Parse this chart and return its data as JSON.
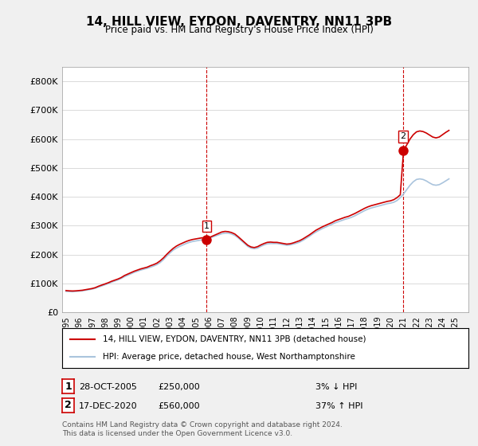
{
  "title": "14, HILL VIEW, EYDON, DAVENTRY, NN11 3PB",
  "subtitle": "Price paid vs. HM Land Registry's House Price Index (HPI)",
  "background_color": "#f0f0f0",
  "plot_bg_color": "#ffffff",
  "ylim": [
    0,
    850000
  ],
  "yticks": [
    0,
    100000,
    200000,
    300000,
    400000,
    500000,
    600000,
    700000,
    800000
  ],
  "ytick_labels": [
    "£0",
    "£100K",
    "£200K",
    "£300K",
    "£400K",
    "£500K",
    "£600K",
    "£700K",
    "£800K"
  ],
  "xlim_start": 1995,
  "xlim_end": 2026,
  "xtick_years": [
    1995,
    1996,
    1997,
    1998,
    1999,
    2000,
    2001,
    2002,
    2003,
    2004,
    2005,
    2006,
    2007,
    2008,
    2009,
    2010,
    2011,
    2012,
    2013,
    2014,
    2015,
    2016,
    2017,
    2018,
    2019,
    2020,
    2021,
    2022,
    2023,
    2024,
    2025
  ],
  "hpi_color": "#aac4dd",
  "sale_color": "#cc0000",
  "dashed_color": "#cc0000",
  "legend_label_sale": "14, HILL VIEW, EYDON, DAVENTRY, NN11 3PB (detached house)",
  "legend_label_hpi": "HPI: Average price, detached house, West Northamptonshire",
  "sale1_year": 2005.83,
  "sale1_price": 250000,
  "sale1_label": "1",
  "sale2_year": 2020.96,
  "sale2_price": 560000,
  "sale2_label": "2",
  "annotation1_date": "28-OCT-2005",
  "annotation1_price": "£250,000",
  "annotation1_pct": "3% ↓ HPI",
  "annotation2_date": "17-DEC-2020",
  "annotation2_price": "£560,000",
  "annotation2_pct": "37% ↑ HPI",
  "footer": "Contains HM Land Registry data © Crown copyright and database right 2024.\nThis data is licensed under the Open Government Licence v3.0.",
  "hpi_data_x": [
    1995.0,
    1995.25,
    1995.5,
    1995.75,
    1996.0,
    1996.25,
    1996.5,
    1996.75,
    1997.0,
    1997.25,
    1997.5,
    1997.75,
    1998.0,
    1998.25,
    1998.5,
    1998.75,
    1999.0,
    1999.25,
    1999.5,
    1999.75,
    2000.0,
    2000.25,
    2000.5,
    2000.75,
    2001.0,
    2001.25,
    2001.5,
    2001.75,
    2002.0,
    2002.25,
    2002.5,
    2002.75,
    2003.0,
    2003.25,
    2003.5,
    2003.75,
    2004.0,
    2004.25,
    2004.5,
    2004.75,
    2005.0,
    2005.25,
    2005.5,
    2005.75,
    2006.0,
    2006.25,
    2006.5,
    2006.75,
    2007.0,
    2007.25,
    2007.5,
    2007.75,
    2008.0,
    2008.25,
    2008.5,
    2008.75,
    2009.0,
    2009.25,
    2009.5,
    2009.75,
    2010.0,
    2010.25,
    2010.5,
    2010.75,
    2011.0,
    2011.25,
    2011.5,
    2011.75,
    2012.0,
    2012.25,
    2012.5,
    2012.75,
    2013.0,
    2013.25,
    2013.5,
    2013.75,
    2014.0,
    2014.25,
    2014.5,
    2014.75,
    2015.0,
    2015.25,
    2015.5,
    2015.75,
    2016.0,
    2016.25,
    2016.5,
    2016.75,
    2017.0,
    2017.25,
    2017.5,
    2017.75,
    2018.0,
    2018.25,
    2018.5,
    2018.75,
    2019.0,
    2019.25,
    2019.5,
    2019.75,
    2020.0,
    2020.25,
    2020.5,
    2020.75,
    2021.0,
    2021.25,
    2021.5,
    2021.75,
    2022.0,
    2022.25,
    2022.5,
    2022.75,
    2023.0,
    2023.25,
    2023.5,
    2023.75,
    2024.0,
    2024.25,
    2024.5
  ],
  "hpi_data_y": [
    72000,
    71500,
    71000,
    72000,
    73000,
    74000,
    76000,
    78000,
    80000,
    83000,
    87000,
    91000,
    95000,
    99000,
    104000,
    108000,
    112000,
    117000,
    123000,
    128000,
    133000,
    138000,
    142000,
    146000,
    149000,
    152000,
    156000,
    160000,
    165000,
    172000,
    182000,
    194000,
    205000,
    215000,
    222000,
    228000,
    233000,
    238000,
    242000,
    245000,
    247000,
    249000,
    251000,
    253000,
    256000,
    260000,
    264000,
    268000,
    272000,
    274000,
    274000,
    271000,
    266000,
    258000,
    248000,
    238000,
    228000,
    222000,
    220000,
    222000,
    228000,
    233000,
    237000,
    238000,
    238000,
    238000,
    236000,
    234000,
    232000,
    233000,
    236000,
    239000,
    243000,
    249000,
    256000,
    263000,
    271000,
    278000,
    284000,
    290000,
    295000,
    300000,
    305000,
    310000,
    314000,
    318000,
    322000,
    325000,
    329000,
    334000,
    340000,
    346000,
    352000,
    357000,
    361000,
    364000,
    367000,
    370000,
    373000,
    376000,
    378000,
    381000,
    387000,
    397000,
    410000,
    425000,
    440000,
    452000,
    460000,
    462000,
    460000,
    455000,
    448000,
    442000,
    440000,
    442000,
    448000,
    455000,
    462000
  ],
  "sale_line_x": [
    1995.0,
    1995.25,
    1995.5,
    1995.75,
    1996.0,
    1996.25,
    1996.5,
    1996.75,
    1997.0,
    1997.25,
    1997.5,
    1997.75,
    1998.0,
    1998.25,
    1998.5,
    1998.75,
    1999.0,
    1999.25,
    1999.5,
    1999.75,
    2000.0,
    2000.25,
    2000.5,
    2000.75,
    2001.0,
    2001.25,
    2001.5,
    2001.75,
    2002.0,
    2002.25,
    2002.5,
    2002.75,
    2003.0,
    2003.25,
    2003.5,
    2003.75,
    2004.0,
    2004.25,
    2004.5,
    2004.75,
    2005.0,
    2005.25,
    2005.5,
    2005.75,
    2006.0,
    2006.25,
    2006.5,
    2006.75,
    2007.0,
    2007.25,
    2007.5,
    2007.75,
    2008.0,
    2008.25,
    2008.5,
    2008.75,
    2009.0,
    2009.25,
    2009.5,
    2009.75,
    2010.0,
    2010.25,
    2010.5,
    2010.75,
    2011.0,
    2011.25,
    2011.5,
    2011.75,
    2012.0,
    2012.25,
    2012.5,
    2012.75,
    2013.0,
    2013.25,
    2013.5,
    2013.75,
    2014.0,
    2014.25,
    2014.5,
    2014.75,
    2015.0,
    2015.25,
    2015.5,
    2015.75,
    2016.0,
    2016.25,
    2016.5,
    2016.75,
    2017.0,
    2017.25,
    2017.5,
    2017.75,
    2018.0,
    2018.25,
    2018.5,
    2018.75,
    2019.0,
    2019.25,
    2019.5,
    2019.75,
    2020.0,
    2020.25,
    2020.5,
    2020.75,
    2021.0,
    2021.25,
    2021.5,
    2021.75,
    2022.0,
    2022.25,
    2022.5,
    2022.75,
    2023.0,
    2023.25,
    2023.5,
    2023.75,
    2024.0,
    2024.25,
    2024.5
  ],
  "sale_line_y": [
    75000,
    74000,
    73500,
    74000,
    75000,
    76000,
    78000,
    80000,
    82000,
    85000,
    90000,
    94000,
    98000,
    102000,
    107000,
    111000,
    115000,
    120000,
    127000,
    132000,
    137000,
    142000,
    146000,
    150000,
    153000,
    156000,
    161000,
    165000,
    170000,
    178000,
    188000,
    200000,
    211000,
    221000,
    229000,
    235000,
    240000,
    245000,
    249000,
    252000,
    254000,
    256000,
    258000,
    250000,
    258000,
    263000,
    268000,
    273000,
    278000,
    280000,
    279000,
    276000,
    271000,
    262000,
    252000,
    242000,
    232000,
    226000,
    224000,
    227000,
    233000,
    238000,
    242000,
    243000,
    242000,
    242000,
    240000,
    238000,
    236000,
    237000,
    240000,
    244000,
    248000,
    254000,
    261000,
    268000,
    276000,
    284000,
    290000,
    296000,
    301000,
    306000,
    311000,
    317000,
    321000,
    325000,
    329000,
    332000,
    337000,
    342000,
    348000,
    354000,
    360000,
    365000,
    369000,
    372000,
    375000,
    378000,
    381000,
    384000,
    386000,
    390000,
    397000,
    407000,
    560000,
    580000,
    600000,
    615000,
    625000,
    628000,
    626000,
    621000,
    614000,
    607000,
    604000,
    607000,
    615000,
    623000,
    630000
  ]
}
